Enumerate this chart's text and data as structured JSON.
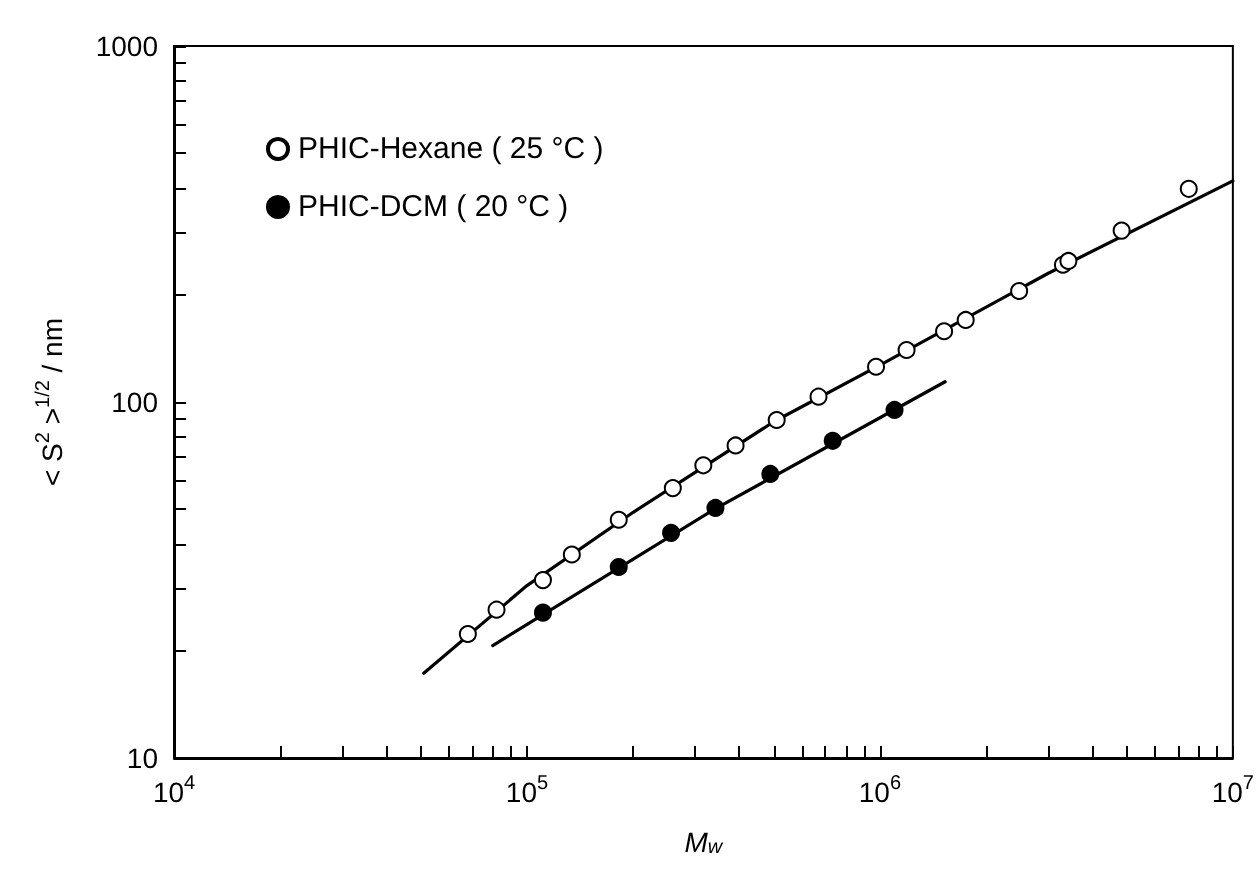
{
  "chart_data": {
    "type": "scatter",
    "xlabel": "M$_{w}$",
    "ylabel": "< S$^{2}$ >$^{1/2}$ / nm",
    "log": "xy",
    "xlim": [
      10000,
      10000000
    ],
    "ylim": [
      10,
      1000
    ],
    "xticks": [
      {
        "value": 10000,
        "label": "10$^{4}$"
      },
      {
        "value": 20000,
        "label": null
      },
      {
        "value": 30000,
        "label": null
      },
      {
        "value": 40000,
        "label": null
      },
      {
        "value": 50000,
        "label": null
      },
      {
        "value": 60000,
        "label": null
      },
      {
        "value": 70000,
        "label": null
      },
      {
        "value": 80000,
        "label": null
      },
      {
        "value": 90000,
        "label": null
      },
      {
        "value": 100000,
        "label": "10$^{5}$"
      },
      {
        "value": 200000,
        "label": null
      },
      {
        "value": 300000,
        "label": null
      },
      {
        "value": 400000,
        "label": null
      },
      {
        "value": 500000,
        "label": null
      },
      {
        "value": 600000,
        "label": null
      },
      {
        "value": 700000,
        "label": null
      },
      {
        "value": 800000,
        "label": null
      },
      {
        "value": 900000,
        "label": null
      },
      {
        "value": 1000000,
        "label": "10$^{6}$"
      },
      {
        "value": 2000000,
        "label": null
      },
      {
        "value": 3000000,
        "label": null
      },
      {
        "value": 4000000,
        "label": null
      },
      {
        "value": 5000000,
        "label": null
      },
      {
        "value": 6000000,
        "label": null
      },
      {
        "value": 7000000,
        "label": null
      },
      {
        "value": 8000000,
        "label": null
      },
      {
        "value": 9000000,
        "label": null
      },
      {
        "value": 10000000,
        "label": "10$^{7}$"
      }
    ],
    "yticks": [
      10,
      {
        "value": 20,
        "label": null
      },
      {
        "value": 30,
        "label": null
      },
      {
        "value": 40,
        "label": null
      },
      {
        "value": 50,
        "label": null
      },
      {
        "value": 60,
        "label": null
      },
      {
        "value": 70,
        "label": null
      },
      {
        "value": 80,
        "label": null
      },
      {
        "value": 90,
        "label": null
      },
      100,
      {
        "value": 200,
        "label": null
      },
      {
        "value": 300,
        "label": null
      },
      {
        "value": 400,
        "label": null
      },
      {
        "value": 500,
        "label": null
      },
      {
        "value": 600,
        "label": null
      },
      {
        "value": 700,
        "label": null
      },
      {
        "value": 800,
        "label": null
      },
      {
        "value": 900,
        "label": null
      },
      1000
    ],
    "grid": false,
    "legend": "top left",
    "marker": "circle",
    "series": [
      {
        "name": "PHIC-Hexane ( 25 °C )",
        "color": "#ffffff",
        "x": [
          68000,
          82000,
          111000,
          134000,
          182000,
          259000,
          316000,
          390000,
          510000,
          670000,
          975000,
          1190000,
          1520000,
          1750000,
          2480000,
          3300000,
          3420000,
          4840000,
          7500000
        ],
        "values": [
          22.3,
          26.1,
          31.6,
          37.3,
          46.7,
          57.3,
          66.4,
          75.5,
          89,
          103.5,
          125.6,
          140,
          158,
          170,
          205,
          243,
          249,
          303,
          397
        ]
      },
      {
        "name": "PHIC-DCM ( 20 °C )",
        "color": "#000000",
        "x": [
          111000,
          182000,
          256000,
          342000,
          489000,
          735000,
          1100000
        ],
        "values": [
          25.6,
          34.4,
          42.9,
          50.4,
          62.8,
          77.8,
          95
        ]
      },
      {
        "type": "line",
        "color": "#000000",
        "marker": "none",
        "line_style": "solid",
        "x": [
          51000,
          100000,
          200000,
          500000,
          1000000,
          3000000,
          10000000
        ],
        "values": [
          17.3,
          30.5,
          49,
          88,
          127,
          230,
          418
        ]
      },
      {
        "type": "line",
        "color": "#000000",
        "marker": "none",
        "line_style": "solid",
        "x": [
          80000,
          340000,
          1530000
        ],
        "values": [
          20.7,
          50,
          114
        ]
      }
    ]
  }
}
